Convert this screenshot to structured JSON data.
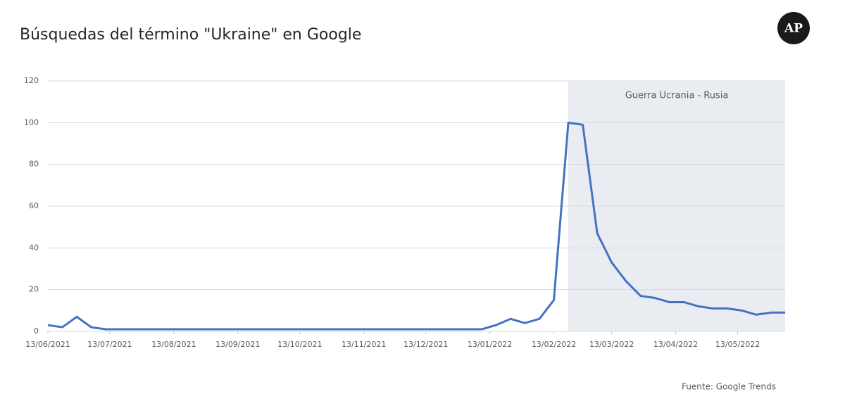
{
  "chart_data": {
    "type": "line",
    "title": "Búsquedas del término \"Ukraine\" en Google",
    "logo": "AP",
    "source": "Fuente: Google Trends",
    "x": [
      "2021-06-13",
      "2021-06-20",
      "2021-06-27",
      "2021-07-04",
      "2021-07-11",
      "2021-07-18",
      "2021-07-25",
      "2021-08-01",
      "2021-08-08",
      "2021-08-15",
      "2021-08-22",
      "2021-08-29",
      "2021-09-05",
      "2021-09-12",
      "2021-09-19",
      "2021-09-26",
      "2021-10-03",
      "2021-10-10",
      "2021-10-17",
      "2021-10-24",
      "2021-10-31",
      "2021-11-07",
      "2021-11-14",
      "2021-11-21",
      "2021-11-28",
      "2021-12-05",
      "2021-12-12",
      "2021-12-19",
      "2021-12-26",
      "2022-01-02",
      "2022-01-09",
      "2022-01-16",
      "2022-01-23",
      "2022-01-30",
      "2022-02-06",
      "2022-02-13",
      "2022-02-20",
      "2022-02-27",
      "2022-03-06",
      "2022-03-13",
      "2022-03-20",
      "2022-03-27",
      "2022-04-03",
      "2022-04-10",
      "2022-04-17",
      "2022-04-24",
      "2022-05-01",
      "2022-05-08",
      "2022-05-15",
      "2022-05-22",
      "2022-05-29",
      "2022-06-05"
    ],
    "series": [
      {
        "name": "Ukraine",
        "color": "#4472c4",
        "values": [
          3,
          2,
          7,
          2,
          1,
          1,
          1,
          1,
          1,
          1,
          1,
          1,
          1,
          1,
          1,
          1,
          1,
          1,
          1,
          1,
          1,
          1,
          1,
          1,
          1,
          1,
          1,
          1,
          1,
          1,
          1,
          3,
          6,
          4,
          6,
          15,
          100,
          99,
          47,
          33,
          24,
          17,
          16,
          14,
          14,
          12,
          11,
          11,
          10,
          8,
          9,
          9
        ]
      }
    ],
    "xlim": [
      "2021-06-13",
      "2022-06-05"
    ],
    "xticks": [
      {
        "value": "2021-06-13",
        "label": "13/06/2021"
      },
      {
        "value": "2021-07-13",
        "label": "13/07/2021"
      },
      {
        "value": "2021-08-13",
        "label": "13/08/2021"
      },
      {
        "value": "2021-09-13",
        "label": "13/09/2021"
      },
      {
        "value": "2021-10-13",
        "label": "13/10/2021"
      },
      {
        "value": "2021-11-13",
        "label": "13/11/2021"
      },
      {
        "value": "2021-12-13",
        "label": "13/12/2021"
      },
      {
        "value": "2022-01-13",
        "label": "13/01/2022"
      },
      {
        "value": "2022-02-13",
        "label": "13/02/2022"
      },
      {
        "value": "2022-03-13",
        "label": "13/03/2022"
      },
      {
        "value": "2022-04-13",
        "label": "13/04/2022"
      },
      {
        "value": "2022-05-13",
        "label": "13/05/2022"
      }
    ],
    "ylim": [
      0,
      120
    ],
    "yticks": [
      0,
      20,
      40,
      60,
      80,
      100,
      120
    ],
    "grid": true,
    "shade": {
      "from": "2022-02-20",
      "to": "2022-06-05",
      "label": "Guerra Ucrania - Rusia",
      "color": "#e9edf2"
    }
  }
}
